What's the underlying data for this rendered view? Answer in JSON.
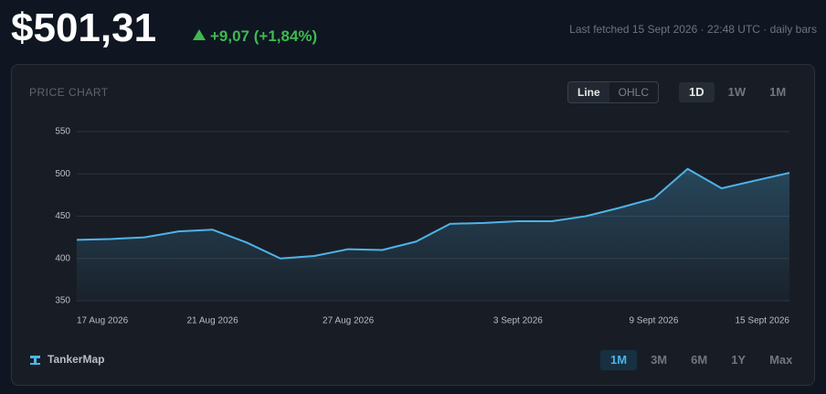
{
  "header": {
    "price": "$501,31",
    "change": "+9,07 (+1,84%)",
    "fetched": "Last fetched 15 Sept 2026 · 22:48 UTC · daily bars"
  },
  "controls": {
    "label": "PRICE CHART",
    "modes": [
      "Line",
      "OHLC"
    ],
    "intervals": [
      "1D",
      "1W",
      "1M"
    ],
    "brand": "TankerMap",
    "ranges": [
      "1M",
      "3M",
      "6M",
      "1Y",
      "Max"
    ]
  },
  "chart_data": {
    "type": "line",
    "categories": [
      "17 Aug 2026",
      null,
      null,
      null,
      "21 Aug 2026",
      null,
      null,
      null,
      "27 Aug 2026",
      null,
      null,
      null,
      null,
      "3 Sept 2026",
      null,
      null,
      null,
      "9 Sept 2026",
      null,
      null,
      null,
      "15 Sept 2026"
    ],
    "values": [
      422,
      423,
      425,
      432,
      434,
      419,
      400,
      403,
      411,
      410,
      420,
      441,
      442,
      444,
      444,
      450,
      460,
      471,
      506,
      483,
      492.24,
      501.31
    ],
    "color": "#4fb3e8",
    "ylim": [
      350,
      550
    ],
    "yticks": [
      350,
      400,
      450,
      500,
      550
    ],
    "grid": true
  }
}
